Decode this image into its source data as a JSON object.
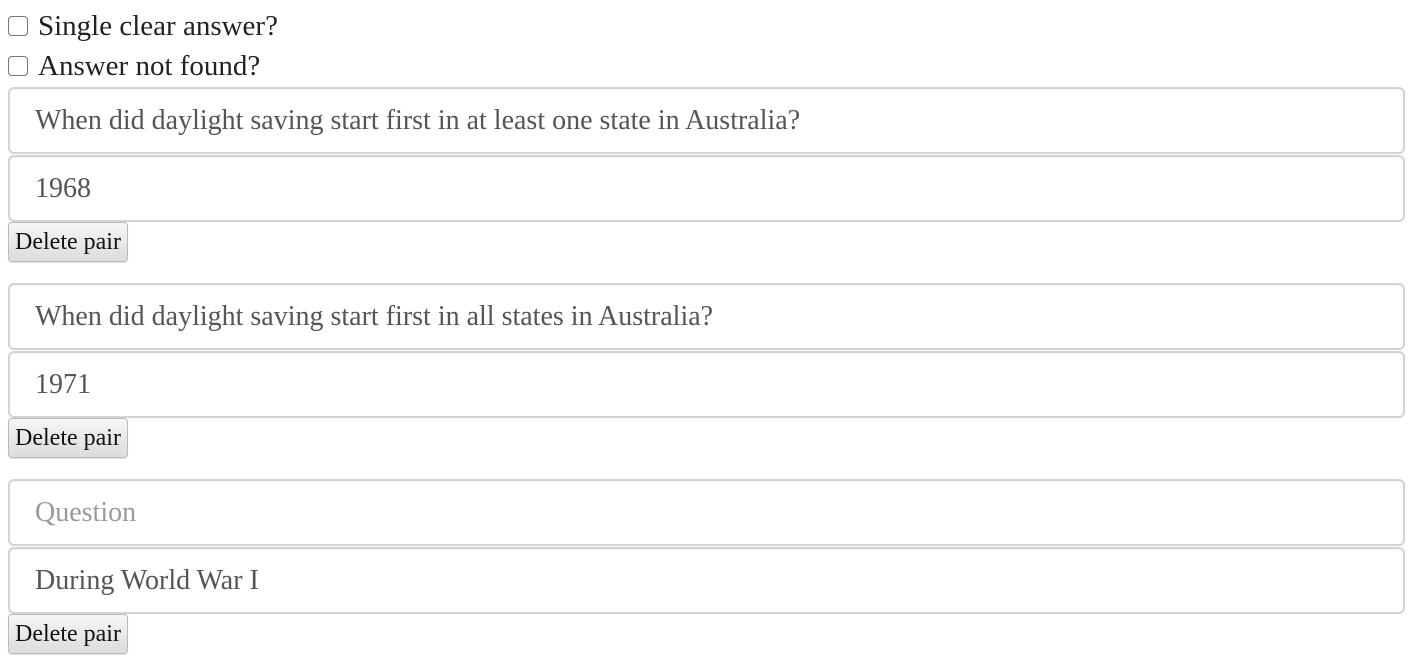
{
  "options": {
    "single_clear_answer": {
      "label": "Single clear answer?",
      "checked": false
    },
    "answer_not_found": {
      "label": "Answer not found?",
      "checked": false
    }
  },
  "pairs": [
    {
      "question": "When did daylight saving start first in at least one state in Australia?",
      "question_placeholder": "Question",
      "answer": "1968",
      "delete_label": "Delete pair"
    },
    {
      "question": "When did daylight saving start first in all states in Australia?",
      "question_placeholder": "Question",
      "answer": "1971",
      "delete_label": "Delete pair"
    },
    {
      "question": "",
      "question_placeholder": "Question",
      "answer": "During World War I",
      "delete_label": "Delete pair"
    }
  ]
}
